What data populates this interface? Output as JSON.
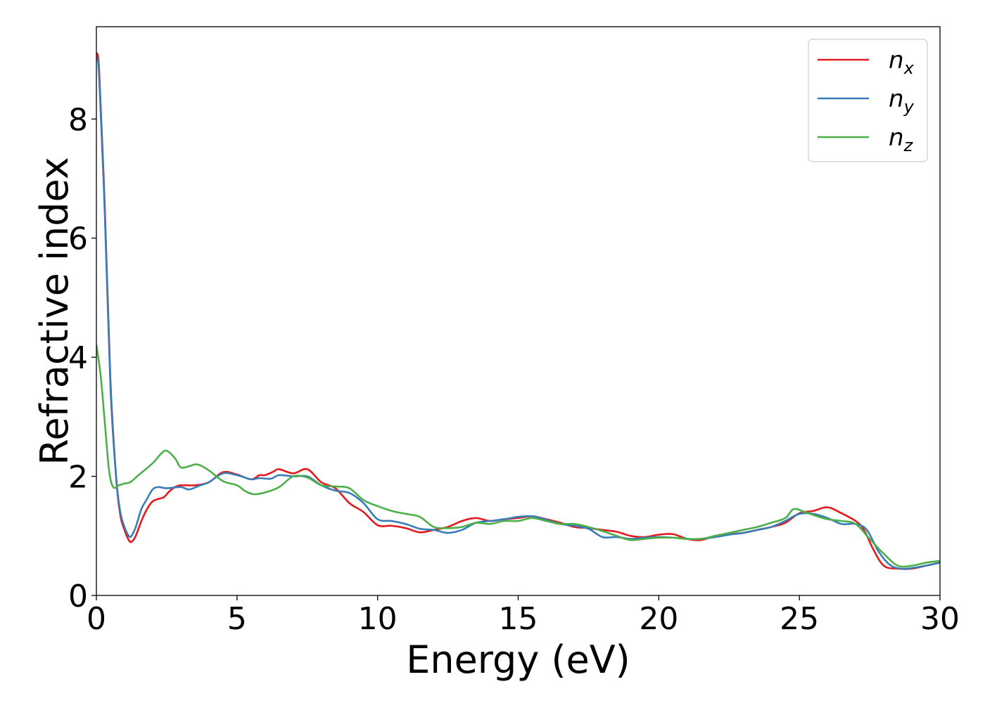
{
  "chart_data": {
    "type": "line",
    "title": "",
    "xlabel": "Energy (eV)",
    "ylabel": "Refractive index",
    "xlim": [
      0,
      30
    ],
    "ylim": [
      0,
      9.55
    ],
    "x_ticks": [
      0,
      5,
      10,
      15,
      20,
      25,
      30
    ],
    "y_ticks": [
      0,
      2,
      4,
      6,
      8
    ],
    "grid": false,
    "legend_position": "top-right",
    "series": [
      {
        "name": "n_x",
        "label_base": "n",
        "label_sub": "x",
        "color": "#e41a1c",
        "points": [
          [
            0,
            9.1
          ],
          [
            0.1,
            8.8
          ],
          [
            0.3,
            6.5
          ],
          [
            0.5,
            3.6
          ],
          [
            0.7,
            2.0
          ],
          [
            0.85,
            1.35
          ],
          [
            1.0,
            1.1
          ],
          [
            1.15,
            0.93
          ],
          [
            1.25,
            0.9
          ],
          [
            1.4,
            1.0
          ],
          [
            1.6,
            1.25
          ],
          [
            1.8,
            1.45
          ],
          [
            2.0,
            1.58
          ],
          [
            2.2,
            1.62
          ],
          [
            2.4,
            1.65
          ],
          [
            2.6,
            1.75
          ],
          [
            2.8,
            1.82
          ],
          [
            3.0,
            1.85
          ],
          [
            3.5,
            1.85
          ],
          [
            4.0,
            1.9
          ],
          [
            4.5,
            2.07
          ],
          [
            5.0,
            2.03
          ],
          [
            5.5,
            1.95
          ],
          [
            5.8,
            2.02
          ],
          [
            6.0,
            2.02
          ],
          [
            6.3,
            2.08
          ],
          [
            6.5,
            2.12
          ],
          [
            7.0,
            2.05
          ],
          [
            7.5,
            2.12
          ],
          [
            8.0,
            1.9
          ],
          [
            8.5,
            1.8
          ],
          [
            9.0,
            1.55
          ],
          [
            9.5,
            1.4
          ],
          [
            10.0,
            1.18
          ],
          [
            10.5,
            1.17
          ],
          [
            11.0,
            1.13
          ],
          [
            11.5,
            1.06
          ],
          [
            12.0,
            1.1
          ],
          [
            12.5,
            1.15
          ],
          [
            13.0,
            1.25
          ],
          [
            13.5,
            1.3
          ],
          [
            14.0,
            1.25
          ],
          [
            14.5,
            1.28
          ],
          [
            15.0,
            1.3
          ],
          [
            15.5,
            1.33
          ],
          [
            16.0,
            1.28
          ],
          [
            16.5,
            1.22
          ],
          [
            17.0,
            1.15
          ],
          [
            17.5,
            1.13
          ],
          [
            18.0,
            1.1
          ],
          [
            18.5,
            1.07
          ],
          [
            19.0,
            1.0
          ],
          [
            19.5,
            0.98
          ],
          [
            20.0,
            1.02
          ],
          [
            20.5,
            1.03
          ],
          [
            21.0,
            0.95
          ],
          [
            21.5,
            0.93
          ],
          [
            22.0,
            1.0
          ],
          [
            22.5,
            1.03
          ],
          [
            23.0,
            1.05
          ],
          [
            23.5,
            1.1
          ],
          [
            24.0,
            1.15
          ],
          [
            24.5,
            1.22
          ],
          [
            25.0,
            1.38
          ],
          [
            25.5,
            1.42
          ],
          [
            26.0,
            1.48
          ],
          [
            26.5,
            1.38
          ],
          [
            27.0,
            1.25
          ],
          [
            27.3,
            1.1
          ],
          [
            27.6,
            0.8
          ],
          [
            28.0,
            0.5
          ],
          [
            28.5,
            0.45
          ],
          [
            29.0,
            0.45
          ],
          [
            29.5,
            0.5
          ],
          [
            30.0,
            0.55
          ]
        ]
      },
      {
        "name": "n_y",
        "label_base": "n",
        "label_sub": "y",
        "color": "#377eb8",
        "points": [
          [
            0,
            9.05
          ],
          [
            0.1,
            8.7
          ],
          [
            0.3,
            6.4
          ],
          [
            0.5,
            3.5
          ],
          [
            0.7,
            2.0
          ],
          [
            0.85,
            1.4
          ],
          [
            1.0,
            1.15
          ],
          [
            1.15,
            1.0
          ],
          [
            1.25,
            1.0
          ],
          [
            1.4,
            1.15
          ],
          [
            1.6,
            1.45
          ],
          [
            1.8,
            1.62
          ],
          [
            2.0,
            1.78
          ],
          [
            2.2,
            1.82
          ],
          [
            2.5,
            1.8
          ],
          [
            3.0,
            1.82
          ],
          [
            3.3,
            1.78
          ],
          [
            3.7,
            1.85
          ],
          [
            4.0,
            1.9
          ],
          [
            4.5,
            2.05
          ],
          [
            5.0,
            2.02
          ],
          [
            5.5,
            1.95
          ],
          [
            5.8,
            1.97
          ],
          [
            6.2,
            1.96
          ],
          [
            6.5,
            2.02
          ],
          [
            7.0,
            2.0
          ],
          [
            7.5,
            2.0
          ],
          [
            8.0,
            1.85
          ],
          [
            8.5,
            1.76
          ],
          [
            9.0,
            1.72
          ],
          [
            9.5,
            1.55
          ],
          [
            10.0,
            1.28
          ],
          [
            10.5,
            1.25
          ],
          [
            11.0,
            1.2
          ],
          [
            11.5,
            1.12
          ],
          [
            12.0,
            1.1
          ],
          [
            12.5,
            1.05
          ],
          [
            13.0,
            1.1
          ],
          [
            13.5,
            1.22
          ],
          [
            14.0,
            1.25
          ],
          [
            14.5,
            1.28
          ],
          [
            15.0,
            1.32
          ],
          [
            15.5,
            1.33
          ],
          [
            16.0,
            1.27
          ],
          [
            16.5,
            1.2
          ],
          [
            17.0,
            1.17
          ],
          [
            17.5,
            1.12
          ],
          [
            18.0,
            0.98
          ],
          [
            18.5,
            0.98
          ],
          [
            19.0,
            0.95
          ],
          [
            19.5,
            0.97
          ],
          [
            20.0,
            0.98
          ],
          [
            20.5,
            0.97
          ],
          [
            21.0,
            0.95
          ],
          [
            21.5,
            0.95
          ],
          [
            22.0,
            0.98
          ],
          [
            22.5,
            1.02
          ],
          [
            23.0,
            1.05
          ],
          [
            23.5,
            1.1
          ],
          [
            24.0,
            1.15
          ],
          [
            24.5,
            1.25
          ],
          [
            25.0,
            1.37
          ],
          [
            25.5,
            1.37
          ],
          [
            26.0,
            1.3
          ],
          [
            26.5,
            1.2
          ],
          [
            27.0,
            1.2
          ],
          [
            27.4,
            1.1
          ],
          [
            27.8,
            0.75
          ],
          [
            28.2,
            0.52
          ],
          [
            28.6,
            0.45
          ],
          [
            29.0,
            0.46
          ],
          [
            29.5,
            0.5
          ],
          [
            30.0,
            0.55
          ]
        ]
      },
      {
        "name": "n_z",
        "label_base": "n",
        "label_sub": "z",
        "color": "#4daf4a",
        "points": [
          [
            0,
            4.2
          ],
          [
            0.15,
            3.7
          ],
          [
            0.3,
            2.9
          ],
          [
            0.45,
            2.1
          ],
          [
            0.6,
            1.82
          ],
          [
            0.8,
            1.85
          ],
          [
            1.0,
            1.88
          ],
          [
            1.2,
            1.9
          ],
          [
            1.5,
            2.02
          ],
          [
            2.0,
            2.22
          ],
          [
            2.3,
            2.38
          ],
          [
            2.5,
            2.43
          ],
          [
            2.8,
            2.3
          ],
          [
            3.0,
            2.15
          ],
          [
            3.3,
            2.17
          ],
          [
            3.6,
            2.2
          ],
          [
            4.0,
            2.1
          ],
          [
            4.5,
            1.92
          ],
          [
            5.0,
            1.85
          ],
          [
            5.3,
            1.75
          ],
          [
            5.6,
            1.7
          ],
          [
            6.0,
            1.73
          ],
          [
            6.5,
            1.82
          ],
          [
            7.0,
            2.0
          ],
          [
            7.5,
            1.98
          ],
          [
            8.0,
            1.85
          ],
          [
            8.5,
            1.83
          ],
          [
            9.0,
            1.8
          ],
          [
            9.5,
            1.6
          ],
          [
            10.0,
            1.5
          ],
          [
            10.5,
            1.42
          ],
          [
            11.0,
            1.37
          ],
          [
            11.5,
            1.32
          ],
          [
            12.0,
            1.15
          ],
          [
            12.5,
            1.13
          ],
          [
            13.0,
            1.15
          ],
          [
            13.5,
            1.22
          ],
          [
            14.0,
            1.2
          ],
          [
            14.5,
            1.25
          ],
          [
            15.0,
            1.25
          ],
          [
            15.5,
            1.3
          ],
          [
            16.0,
            1.25
          ],
          [
            16.5,
            1.2
          ],
          [
            17.0,
            1.2
          ],
          [
            17.5,
            1.15
          ],
          [
            18.0,
            1.08
          ],
          [
            18.5,
            1.0
          ],
          [
            19.0,
            0.93
          ],
          [
            19.5,
            0.95
          ],
          [
            20.0,
            0.97
          ],
          [
            20.5,
            0.97
          ],
          [
            21.0,
            0.95
          ],
          [
            21.5,
            0.95
          ],
          [
            22.0,
            1.0
          ],
          [
            22.5,
            1.05
          ],
          [
            23.0,
            1.1
          ],
          [
            23.5,
            1.15
          ],
          [
            24.0,
            1.22
          ],
          [
            24.5,
            1.3
          ],
          [
            24.8,
            1.45
          ],
          [
            25.2,
            1.4
          ],
          [
            25.5,
            1.35
          ],
          [
            26.0,
            1.28
          ],
          [
            26.5,
            1.25
          ],
          [
            27.0,
            1.2
          ],
          [
            27.5,
            0.95
          ],
          [
            28.0,
            0.7
          ],
          [
            28.5,
            0.5
          ],
          [
            29.0,
            0.5
          ],
          [
            29.5,
            0.55
          ],
          [
            30.0,
            0.58
          ]
        ]
      }
    ]
  }
}
